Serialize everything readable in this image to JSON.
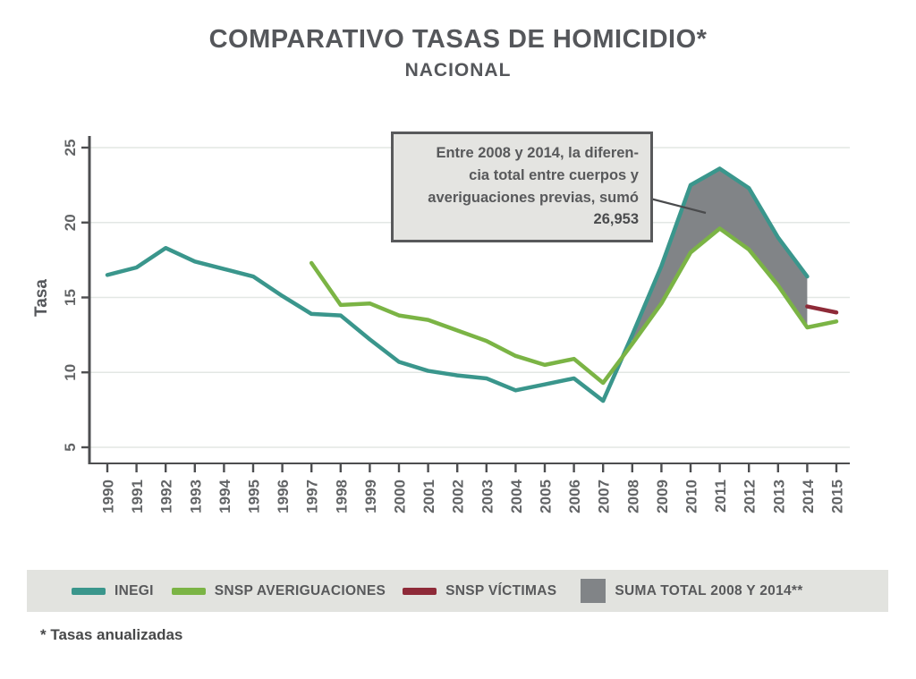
{
  "header": {
    "title": "COMPARATIVO TASAS DE HOMICIDIO*",
    "subtitle": "NACIONAL"
  },
  "annotation": {
    "lines": [
      "Entre 2008 y 2014, la diferen-",
      "cia total entre cuerpos y",
      "averiguaciones previas, sumó"
    ],
    "value": "26,953"
  },
  "legend": {
    "items": [
      {
        "label": "INEGI",
        "color": "#3a968c",
        "shape": "bar"
      },
      {
        "label": "SNSP AVERIGUACIONES",
        "color": "#7bb445",
        "shape": "bar"
      },
      {
        "label": "SNSP VÍCTIMAS",
        "color": "#8e2a38",
        "shape": "bar"
      },
      {
        "label": "SUMA TOTAL 2008 Y 2014**",
        "color": "#818487",
        "shape": "box"
      }
    ]
  },
  "footnote": "* Tasas anualizadas",
  "chart_data": {
    "type": "line",
    "title": "COMPARATIVO TASAS DE HOMICIDIO*",
    "subtitle": "NACIONAL",
    "xlabel": "",
    "ylabel": "Tasa",
    "ylim": [
      5,
      25
    ],
    "y_ticks": [
      5,
      10,
      15,
      20,
      25
    ],
    "x_ticks": [
      1990,
      1991,
      1992,
      1993,
      1994,
      1995,
      1996,
      1997,
      1998,
      1999,
      2000,
      2001,
      2002,
      2003,
      2004,
      2005,
      2006,
      2007,
      2008,
      2009,
      2010,
      2011,
      2012,
      2013,
      2014,
      2015
    ],
    "grid": true,
    "legend_position": "bottom",
    "grid_color": "#e3e7e4",
    "axis_color": "#4d4e50",
    "series": [
      {
        "name": "INEGI",
        "color": "#3a968c",
        "start_year": 1990,
        "values": [
          16.5,
          17.0,
          18.3,
          17.4,
          16.9,
          16.4,
          15.1,
          13.9,
          13.8,
          12.2,
          10.7,
          10.1,
          9.8,
          9.6,
          8.8,
          9.2,
          9.6,
          8.1,
          12.5,
          17.1,
          22.5,
          23.6,
          22.3,
          19.0,
          16.4
        ]
      },
      {
        "name": "SNSP AVERIGUACIONES",
        "color": "#7bb445",
        "start_year": 1997,
        "values": [
          17.3,
          14.5,
          14.6,
          13.8,
          13.5,
          12.8,
          12.1,
          11.1,
          10.5,
          10.9,
          9.3,
          11.9,
          14.6,
          18.0,
          19.6,
          18.2,
          15.8,
          13.0,
          13.4
        ]
      },
      {
        "name": "SNSP VÍCTIMAS",
        "color": "#8e2a38",
        "start_year": 2014,
        "values": [
          14.4,
          14.0
        ]
      }
    ],
    "band": {
      "name": "SUMA TOTAL 2008 Y 2014**",
      "color": "#818487",
      "from_year": 2008,
      "to_year": 2014,
      "upper_series": "INEGI",
      "lower_series": "SNSP AVERIGUACIONES",
      "total_difference_label": "26,953"
    }
  }
}
